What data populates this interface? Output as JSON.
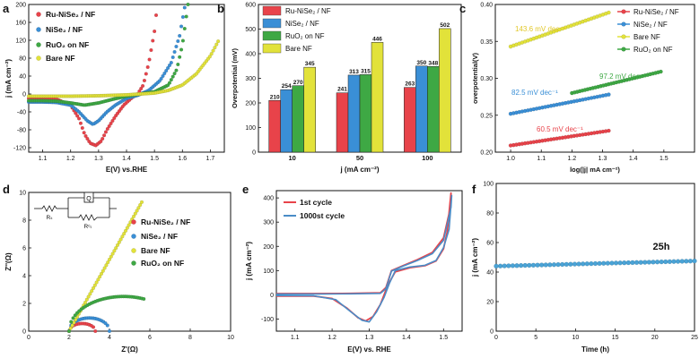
{
  "figure": {
    "panels": [
      "a",
      "b",
      "c",
      "d",
      "e",
      "f"
    ]
  },
  "chart_data": [
    {
      "id": "a",
      "type": "scatter",
      "xlabel": "E(V) vs.RHE",
      "ylabel": "j (mA cm⁻²)",
      "xlim": [
        1.05,
        1.75
      ],
      "ylim": [
        -130,
        200
      ],
      "xticks": [
        "1.1",
        "1.2",
        "1.3",
        "1.4",
        "1.5",
        "1.6",
        "1.7"
      ],
      "yticks": [
        "-120",
        "-80",
        "-40",
        "0",
        "40",
        "80",
        "120",
        "160",
        "200"
      ],
      "legend": [
        "Ru-NiSe₂ / NF",
        "NiSe₂ / NF",
        "RuO₂ on NF",
        "Bare NF"
      ],
      "series": [
        {
          "name": "Ru-NiSe₂ / NF",
          "color": "#e8434a",
          "points": [
            [
              1.05,
              -10
            ],
            [
              1.1,
              -10
            ],
            [
              1.15,
              -12
            ],
            [
              1.2,
              -25
            ],
            [
              1.23,
              -55
            ],
            [
              1.25,
              -90
            ],
            [
              1.27,
              -110
            ],
            [
              1.29,
              -115
            ],
            [
              1.31,
              -105
            ],
            [
              1.33,
              -80
            ],
            [
              1.36,
              -50
            ],
            [
              1.39,
              -25
            ],
            [
              1.42,
              -8
            ],
            [
              1.44,
              0
            ],
            [
              1.46,
              20
            ],
            [
              1.48,
              70
            ],
            [
              1.5,
              140
            ],
            [
              1.51,
              200
            ]
          ]
        },
        {
          "name": "NiSe₂ / NF",
          "color": "#3a8fd6",
          "points": [
            [
              1.05,
              -18
            ],
            [
              1.1,
              -18
            ],
            [
              1.15,
              -19
            ],
            [
              1.2,
              -25
            ],
            [
              1.23,
              -40
            ],
            [
              1.26,
              -60
            ],
            [
              1.28,
              -68
            ],
            [
              1.3,
              -60
            ],
            [
              1.33,
              -40
            ],
            [
              1.36,
              -25
            ],
            [
              1.4,
              -10
            ],
            [
              1.44,
              -3
            ],
            [
              1.48,
              8
            ],
            [
              1.52,
              30
            ],
            [
              1.56,
              70
            ],
            [
              1.59,
              130
            ],
            [
              1.61,
              200
            ]
          ]
        },
        {
          "name": "RuO₂ on NF",
          "color": "#3ea844",
          "points": [
            [
              1.05,
              -15
            ],
            [
              1.1,
              -15
            ],
            [
              1.15,
              -16
            ],
            [
              1.2,
              -20
            ],
            [
              1.25,
              -25
            ],
            [
              1.3,
              -20
            ],
            [
              1.35,
              -12
            ],
            [
              1.4,
              -5
            ],
            [
              1.45,
              0
            ],
            [
              1.5,
              5
            ],
            [
              1.55,
              20
            ],
            [
              1.58,
              55
            ],
            [
              1.6,
              110
            ],
            [
              1.62,
              200
            ]
          ]
        },
        {
          "name": "Bare NF",
          "color": "#e2e23a",
          "points": [
            [
              1.05,
              -5
            ],
            [
              1.1,
              -5
            ],
            [
              1.2,
              -5
            ],
            [
              1.3,
              -4
            ],
            [
              1.4,
              -2
            ],
            [
              1.5,
              2
            ],
            [
              1.55,
              8
            ],
            [
              1.6,
              20
            ],
            [
              1.65,
              45
            ],
            [
              1.7,
              85
            ],
            [
              1.73,
              120
            ]
          ]
        }
      ]
    },
    {
      "id": "b",
      "type": "bar",
      "xlabel": "j (mA cm⁻²)",
      "ylabel": "Overpotential (mV)",
      "categories": [
        "10",
        "50",
        "100"
      ],
      "ylim": [
        0,
        600
      ],
      "yticks": [
        "0",
        "100",
        "200",
        "300",
        "400",
        "500",
        "600"
      ],
      "series": [
        {
          "name": "Ru-NiSe₂ / NF",
          "color": "#e8434a",
          "values": [
            210,
            241,
            263
          ]
        },
        {
          "name": "NiSe₂ / NF",
          "color": "#3a8fd6",
          "values": [
            254,
            313,
            350
          ]
        },
        {
          "name": "RuO₂ on NF",
          "color": "#3ea844",
          "values": [
            270,
            315,
            348
          ]
        },
        {
          "name": "Bare NF",
          "color": "#e2e23a",
          "values": [
            345,
            446,
            502
          ]
        }
      ]
    },
    {
      "id": "c",
      "type": "scatter",
      "xlabel": "log(|j| mA cm⁻²)",
      "ylabel": "overpotential(V)",
      "xlim": [
        0.95,
        1.6
      ],
      "ylim": [
        0.2,
        0.4
      ],
      "xticks": [
        "1.0",
        "1.1",
        "1.2",
        "1.3",
        "1.4",
        "1.5"
      ],
      "yticks": [
        "0.20",
        "0.25",
        "0.30",
        "0.35",
        "0.40"
      ],
      "legend": [
        "Ru-NiSe₂ / NF",
        "NiSe₂ / NF",
        "Bare NF",
        "RuO₂ on NF"
      ],
      "annotations": [
        "60.5 mV dec⁻¹",
        "82.5 mV dec⁻¹",
        "143.6 mV dec⁻¹",
        "97.2 mV dec⁻¹"
      ],
      "series": [
        {
          "name": "Ru-NiSe₂ / NF",
          "color": "#e8434a",
          "x": [
            1.0,
            1.32
          ],
          "y": [
            0.209,
            0.229
          ]
        },
        {
          "name": "NiSe₂ / NF",
          "color": "#3a8fd6",
          "x": [
            1.0,
            1.32
          ],
          "y": [
            0.252,
            0.278
          ]
        },
        {
          "name": "Bare NF",
          "color": "#e2e23a",
          "x": [
            1.0,
            1.32
          ],
          "y": [
            0.343,
            0.389
          ]
        },
        {
          "name": "RuO₂ on NF",
          "color": "#3ea844",
          "x": [
            1.2,
            1.49
          ],
          "y": [
            0.28,
            0.309
          ]
        }
      ]
    },
    {
      "id": "d",
      "type": "scatter",
      "xlabel": "Z'(Ω)",
      "ylabel": "Z''(Ω)",
      "xlim": [
        0,
        10
      ],
      "ylim": [
        0,
        10
      ],
      "xticks": [
        "0",
        "2",
        "4",
        "6",
        "8",
        "10"
      ],
      "yticks": [
        "0",
        "2",
        "4",
        "6",
        "8",
        "10"
      ],
      "legend": [
        "Ru-NiSe₂ / NF",
        "NiSe₂ / NF",
        "Bare NF",
        "RuO₂ on NF"
      ],
      "circuit": {
        "element": "Q",
        "labels": [
          "Rₛ",
          "Rᶜₜ"
        ]
      },
      "series": [
        {
          "name": "Ru-NiSe₂ / NF",
          "color": "#e8434a",
          "arc": {
            "x0": 2.0,
            "x1": 3.3,
            "h": 0.55
          }
        },
        {
          "name": "NiSe₂ / NF",
          "color": "#3a8fd6",
          "arc": {
            "x0": 2.0,
            "x1": 4.0,
            "h": 0.95
          }
        },
        {
          "name": "Bare NF",
          "color": "#e2e23a",
          "line": {
            "x0": 2.0,
            "y0": 0.0,
            "x1": 5.6,
            "y1": 9.3
          }
        },
        {
          "name": "RuO₂ on NF",
          "color": "#3ea844",
          "arc": {
            "x0": 2.0,
            "x1": 7.4,
            "h": 2.5,
            "xmax": 5.7
          }
        }
      ]
    },
    {
      "id": "e",
      "type": "line",
      "xlabel": "E(V) vs. RHE",
      "ylabel": "j (mA cm⁻²)",
      "xlim": [
        1.05,
        1.55
      ],
      "ylim": [
        -150,
        430
      ],
      "xticks": [
        "1.1",
        "1.2",
        "1.3",
        "1.4",
        "1.5"
      ],
      "yticks": [
        "-100",
        "0",
        "100",
        "200",
        "300",
        "400"
      ],
      "legend": [
        "1st cycle",
        "1000st cycle"
      ],
      "series": [
        {
          "name": "1st cycle",
          "color": "#e8434a",
          "points": [
            [
              1.05,
              -5
            ],
            [
              1.15,
              -5
            ],
            [
              1.2,
              -15
            ],
            [
              1.24,
              -55
            ],
            [
              1.27,
              -95
            ],
            [
              1.29,
              -108
            ],
            [
              1.31,
              -90
            ],
            [
              1.33,
              -40
            ],
            [
              1.35,
              40
            ],
            [
              1.37,
              95
            ],
            [
              1.41,
              112
            ],
            [
              1.45,
              120
            ],
            [
              1.48,
              140
            ],
            [
              1.5,
              190
            ],
            [
              1.51,
              260
            ],
            [
              1.52,
              420
            ],
            [
              1.52,
              370
            ],
            [
              1.5,
              235
            ],
            [
              1.47,
              175
            ],
            [
              1.43,
              145
            ],
            [
              1.39,
              120
            ],
            [
              1.36,
              100
            ],
            [
              1.345,
              30
            ],
            [
              1.33,
              8
            ],
            [
              1.25,
              6
            ],
            [
              1.15,
              5
            ],
            [
              1.05,
              5
            ]
          ]
        },
        {
          "name": "1000st cycle",
          "color": "#4a8cc7",
          "points": [
            [
              1.05,
              -3
            ],
            [
              1.15,
              -4
            ],
            [
              1.21,
              -20
            ],
            [
              1.25,
              -70
            ],
            [
              1.28,
              -105
            ],
            [
              1.3,
              -112
            ],
            [
              1.32,
              -70
            ],
            [
              1.34,
              -10
            ],
            [
              1.355,
              50
            ],
            [
              1.37,
              100
            ],
            [
              1.41,
              115
            ],
            [
              1.45,
              122
            ],
            [
              1.48,
              142
            ],
            [
              1.5,
              195
            ],
            [
              1.515,
              270
            ],
            [
              1.522,
              410
            ],
            [
              1.52,
              360
            ],
            [
              1.5,
              225
            ],
            [
              1.47,
              170
            ],
            [
              1.43,
              142
            ],
            [
              1.39,
              118
            ],
            [
              1.36,
              98
            ],
            [
              1.345,
              25
            ],
            [
              1.33,
              6
            ],
            [
              1.25,
              4
            ],
            [
              1.15,
              3
            ],
            [
              1.05,
              3
            ]
          ]
        }
      ]
    },
    {
      "id": "f",
      "type": "scatter",
      "xlabel": "Time (h)",
      "ylabel": "j (mA cm⁻²)",
      "xlim": [
        0,
        25
      ],
      "ylim": [
        0,
        100
      ],
      "xticks": [
        "0",
        "5",
        "10",
        "15",
        "20",
        "25"
      ],
      "yticks": [
        "0",
        "20",
        "40",
        "60",
        "80",
        "100"
      ],
      "annotations": [
        "25h"
      ],
      "series": [
        {
          "name": "stability",
          "color": "#4aa3d6",
          "x": [
            0,
            25
          ],
          "y": [
            44,
            47.5
          ]
        }
      ]
    }
  ]
}
